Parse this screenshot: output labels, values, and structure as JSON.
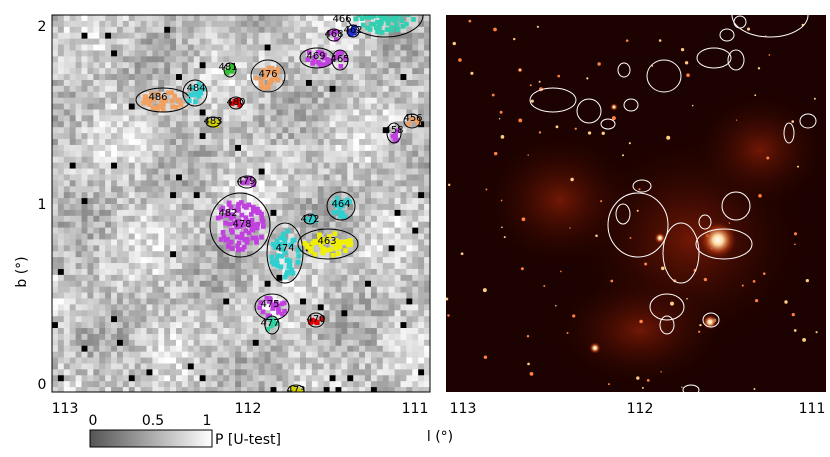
{
  "left_panel": {
    "x_ticks": [
      113,
      112,
      111
    ],
    "y_ticks": [
      2,
      1,
      0
    ],
    "y_label": "b (°)",
    "sources": [
      486,
      484,
      481,
      476,
      480,
      483,
      469,
      465,
      466,
      468,
      462,
      458,
      456,
      479,
      464,
      482,
      478,
      472,
      474,
      463,
      475,
      477,
      470,
      473
    ]
  },
  "right_panel": {
    "x_ticks": [
      113,
      112,
      111
    ]
  },
  "x_label": "l (°)",
  "colorbar": {
    "ticks": [
      0,
      0.5,
      1
    ],
    "label": "P [U-test]"
  }
}
